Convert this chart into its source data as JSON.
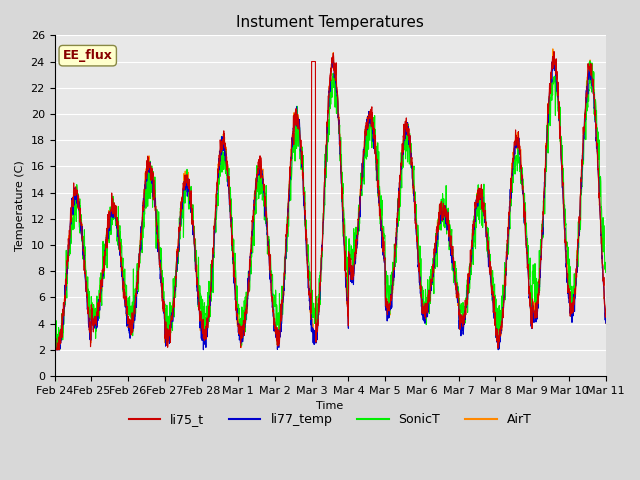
{
  "title": "Instument Temperatures",
  "xlabel": "Time",
  "ylabel": "Temperature (C)",
  "ylim": [
    0,
    26
  ],
  "n_days": 15,
  "xtick_labels": [
    "Feb 24",
    "Feb 25",
    "Feb 26",
    "Feb 27",
    "Feb 28",
    "Mar 1",
    "Mar 2",
    "Mar 3",
    "Mar 4",
    "Mar 5",
    "Mar 6",
    "Mar 7",
    "Mar 8",
    "Mar 9",
    "Mar 10",
    "Mar 11"
  ],
  "legend_labels": [
    "li75_t",
    "li77_temp",
    "SonicT",
    "AirT"
  ],
  "line_colors": [
    "#cc0000",
    "#0000cc",
    "#00ee00",
    "#ff8800"
  ],
  "annotation_text": "EE_flux",
  "annotation_color": "#880000",
  "annotation_bg": "#ffffcc",
  "annotation_border": "#888844",
  "fig_facecolor": "#d8d8d8",
  "ax_facecolor": "#e8e8e8",
  "title_fontsize": 11,
  "axis_fontsize": 8,
  "legend_fontsize": 9,
  "day_peaks": [
    14,
    13,
    16,
    15,
    18,
    16,
    20,
    24,
    20,
    19,
    13,
    14,
    18,
    24,
    24
  ],
  "day_mins": [
    2,
    4,
    4,
    3,
    3,
    3,
    3,
    3,
    8,
    5,
    5,
    4,
    3,
    5,
    5
  ]
}
